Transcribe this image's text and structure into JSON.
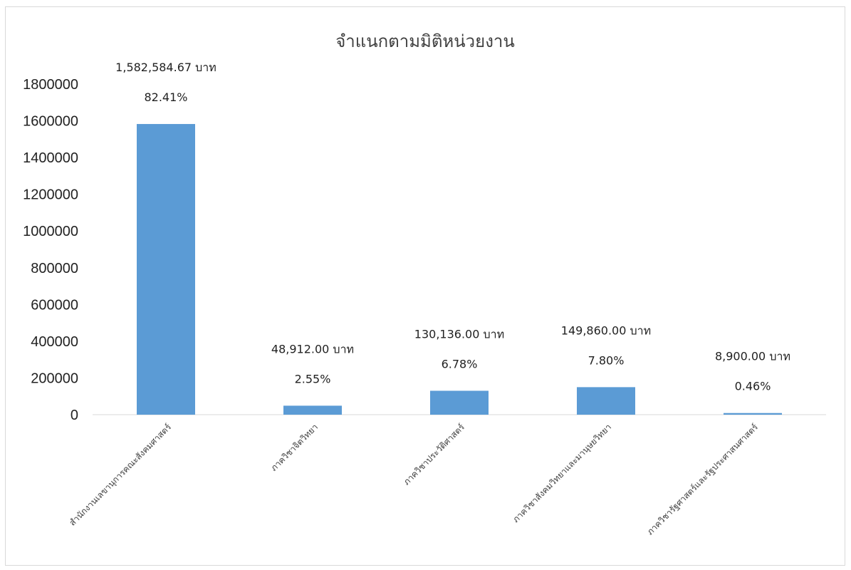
{
  "chart_data": {
    "type": "bar",
    "title": "จำแนกตามมิติหน่วยงาน",
    "categories": [
      "สำนักงานเลขานุการคณะสังคมศาสตร์",
      "ภาควิชาจิตวิทยา",
      "ภาควิชาประวัติศาสตร์",
      "ภาควิชาสังคมวิทยาและมานุษยวิทยา",
      "ภาควิชารัฐศาสตร์และรัฐประศาสนศาสตร์"
    ],
    "values": [
      1582584.67,
      48912.0,
      130136.0,
      149860.0,
      8900.0
    ],
    "data_labels": [
      {
        "amount": "1,582,584.67 บาท",
        "percent": "82.41%"
      },
      {
        "amount": "48,912.00 บาท",
        "percent": "2.55%"
      },
      {
        "amount": "130,136.00 บาท",
        "percent": "6.78%"
      },
      {
        "amount": "149,860.00 บาท",
        "percent": "7.80%"
      },
      {
        "amount": "8,900.00 บาท",
        "percent": "0.46%"
      }
    ],
    "y_ticks": [
      "0",
      "200000",
      "400000",
      "600000",
      "800000",
      "1000000",
      "1200000",
      "1400000",
      "1600000",
      "1800000"
    ],
    "ylim": [
      0,
      1800000
    ],
    "grid": false,
    "legend": "none",
    "bar_color": "#5b9bd5",
    "axis_color": "#d9d9d9"
  }
}
